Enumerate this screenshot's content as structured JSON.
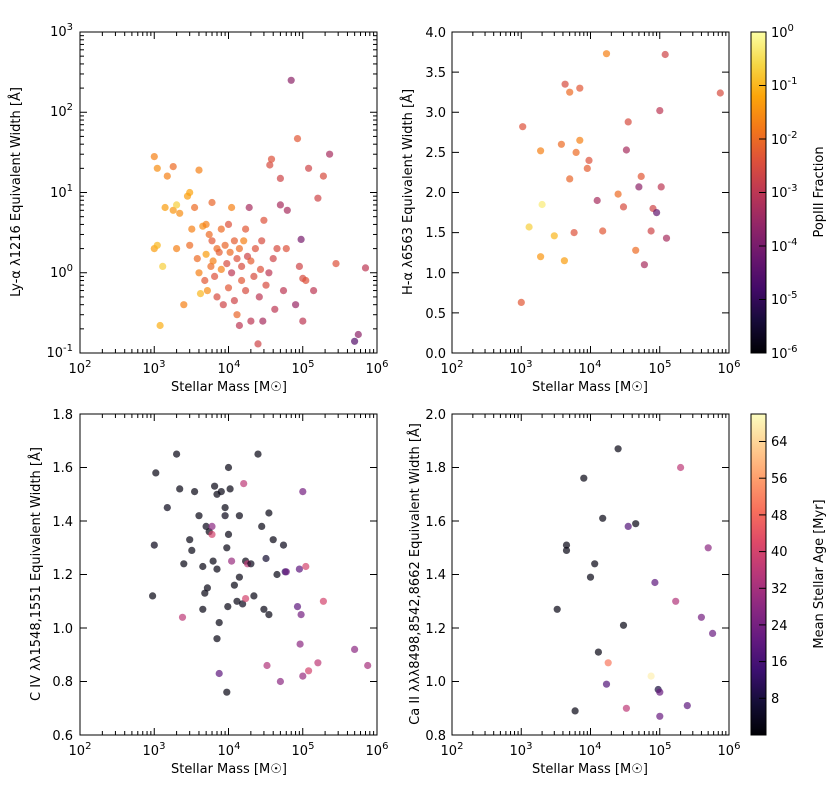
{
  "figure": {
    "colorbars": [
      {
        "label": "PopIII Fraction",
        "scale": "log",
        "range": [
          1e-06,
          1
        ],
        "tick_labels": [
          "10-6",
          "10-5",
          "10-4",
          "10-3",
          "10-2",
          "10-1",
          "100"
        ]
      },
      {
        "label": "Mean Stellar Age [Myr]",
        "scale": "linear",
        "range": [
          0,
          70
        ],
        "tick_labels": [
          "8",
          "16",
          "24",
          "32",
          "40",
          "48",
          "56",
          "64"
        ]
      }
    ]
  },
  "chart_data": [
    {
      "type": "scatter",
      "xlabel": "Stellar Mass [M☉]",
      "ylabel": "Ly-α λ1216 Equivalent Width [Å]",
      "xscale": "log",
      "yscale": "log",
      "xlim": [
        100,
        1000000
      ],
      "ylim": [
        0.1,
        1000
      ],
      "xtick_labels": [
        "10^2",
        "10^3",
        "10^4",
        "10^5",
        "10^6"
      ],
      "ytick_labels": [
        "10^-1",
        "10^0",
        "10^1",
        "10^2",
        "10^3"
      ],
      "color_by": "PopIII Fraction",
      "points": [
        [
          1000,
          28,
          0.02
        ],
        [
          1100,
          20,
          0.03
        ],
        [
          1000,
          2.0,
          0.05
        ],
        [
          1100,
          2.2,
          0.1
        ],
        [
          1200,
          0.22,
          0.08
        ],
        [
          1300,
          1.2,
          0.2
        ],
        [
          1400,
          6.5,
          0.05
        ],
        [
          1500,
          16,
          0.02
        ],
        [
          1800,
          21,
          0.01
        ],
        [
          1800,
          6.0,
          0.04
        ],
        [
          2000,
          2.0,
          0.02
        ],
        [
          2000,
          7.0,
          0.2
        ],
        [
          2200,
          5.5,
          0.03
        ],
        [
          2500,
          0.4,
          0.02
        ],
        [
          2800,
          9,
          0.05
        ],
        [
          3000,
          2.2,
          0.01
        ],
        [
          3000,
          10,
          0.06
        ],
        [
          3200,
          3.5,
          0.02
        ],
        [
          3500,
          6.5,
          0.01
        ],
        [
          3800,
          1.5,
          0.01
        ],
        [
          4000,
          19,
          0.02
        ],
        [
          4000,
          1.0,
          0.02
        ],
        [
          4200,
          0.55,
          0.1
        ],
        [
          4500,
          3.8,
          0.03
        ],
        [
          4800,
          0.8,
          0.005
        ],
        [
          5000,
          1.7,
          0.05
        ],
        [
          5000,
          4.0,
          0.02
        ],
        [
          5200,
          0.6,
          0.03
        ],
        [
          5500,
          3.0,
          0.01
        ],
        [
          5800,
          1.2,
          0.01
        ],
        [
          6000,
          7.5,
          0.008
        ],
        [
          6000,
          2.5,
          0.005
        ],
        [
          6200,
          1.4,
          0.02
        ],
        [
          6500,
          0.9,
          0.004
        ],
        [
          7000,
          2.0,
          0.01
        ],
        [
          7000,
          0.5,
          0.003
        ],
        [
          7500,
          1.8,
          0.006
        ],
        [
          8000,
          3.5,
          0.01
        ],
        [
          8000,
          1.1,
          0.02
        ],
        [
          8500,
          0.4,
          0.002
        ],
        [
          9000,
          2.2,
          0.008
        ],
        [
          9500,
          1.3,
          0.003
        ],
        [
          10000,
          4.0,
          0.004
        ],
        [
          10000,
          0.65,
          0.005
        ],
        [
          10500,
          1.8,
          0.01
        ],
        [
          11000,
          6.5,
          0.02
        ],
        [
          11000,
          1.0,
          0.001
        ],
        [
          12000,
          2.5,
          0.006
        ],
        [
          12000,
          0.45,
          0.002
        ],
        [
          13000,
          1.5,
          0.004
        ],
        [
          13000,
          0.3,
          0.008
        ],
        [
          14000,
          2.0,
          0.01
        ],
        [
          14000,
          0.22,
          0.001
        ],
        [
          15000,
          1.2,
          0.003
        ],
        [
          15000,
          0.8,
          0.005
        ],
        [
          16000,
          2.5,
          0.02
        ],
        [
          17000,
          3.5,
          0.005
        ],
        [
          17000,
          0.6,
          0.003
        ],
        [
          18000,
          1.6,
          0.002
        ],
        [
          19000,
          6.5,
          0.0005
        ],
        [
          20000,
          0.25,
          0.001
        ],
        [
          20000,
          1.4,
          0.006
        ],
        [
          22000,
          0.9,
          0.003
        ],
        [
          23000,
          2.0,
          0.004
        ],
        [
          25000,
          0.13,
          0.002
        ],
        [
          26000,
          0.5,
          0.001
        ],
        [
          27000,
          1.1,
          0.004
        ],
        [
          28000,
          2.5,
          0.003
        ],
        [
          29000,
          0.25,
          0.0005
        ],
        [
          30000,
          4.5,
          0.004
        ],
        [
          32000,
          0.7,
          0.003
        ],
        [
          35000,
          1.0,
          0.001
        ],
        [
          36000,
          22,
          0.003
        ],
        [
          38000,
          26,
          0.004
        ],
        [
          40000,
          1.5,
          0.002
        ],
        [
          42000,
          0.35,
          0.001
        ],
        [
          45000,
          2.0,
          0.003
        ],
        [
          50000,
          7.0,
          0.0005
        ],
        [
          50000,
          15,
          0.002
        ],
        [
          55000,
          0.6,
          0.001
        ],
        [
          60000,
          2.0,
          0.004
        ],
        [
          62000,
          6.0,
          0.0005
        ],
        [
          70000,
          250,
          0.0002
        ],
        [
          80000,
          0.4,
          0.0003
        ],
        [
          85000,
          47,
          0.005
        ],
        [
          90000,
          1.2,
          0.002
        ],
        [
          95000,
          2.6,
          0.0001
        ],
        [
          100000,
          0.85,
          0.003
        ],
        [
          100000,
          0.25,
          0.001
        ],
        [
          110000,
          0.8,
          0.004
        ],
        [
          120000,
          20,
          0.002
        ],
        [
          140000,
          0.6,
          0.001
        ],
        [
          160000,
          8.5,
          0.002
        ],
        [
          190000,
          16,
          0.003
        ],
        [
          230000,
          30,
          0.0005
        ],
        [
          280000,
          1.3,
          0.004
        ],
        [
          500000,
          0.14,
          3e-05
        ],
        [
          560000,
          0.17,
          0.0002
        ],
        [
          700000,
          1.15,
          0.001
        ]
      ]
    },
    {
      "type": "scatter",
      "xlabel": "Stellar Mass [M☉]",
      "ylabel": "H-α λ6563 Equivalent Width [Å]",
      "xscale": "log",
      "yscale": "linear",
      "xlim": [
        100,
        1000000
      ],
      "ylim": [
        0.0,
        4.0
      ],
      "xtick_labels": [
        "10^2",
        "10^3",
        "10^4",
        "10^5",
        "10^6"
      ],
      "ytick_labels": [
        "0.0",
        "0.5",
        "1.0",
        "1.5",
        "2.0",
        "2.5",
        "3.0",
        "3.5",
        "4.0"
      ],
      "color_by": "PopIII Fraction",
      "points": [
        [
          1000,
          0.63,
          0.005
        ],
        [
          1050,
          2.82,
          0.004
        ],
        [
          1300,
          1.57,
          0.2
        ],
        [
          1900,
          1.2,
          0.04
        ],
        [
          1900,
          2.52,
          0.02
        ],
        [
          2000,
          1.85,
          0.5
        ],
        [
          3000,
          1.46,
          0.1
        ],
        [
          3800,
          2.6,
          0.01
        ],
        [
          4200,
          1.15,
          0.05
        ],
        [
          4300,
          3.35,
          0.003
        ],
        [
          5000,
          3.25,
          0.01
        ],
        [
          5000,
          2.17,
          0.008
        ],
        [
          5800,
          1.5,
          0.004
        ],
        [
          6200,
          2.5,
          0.01
        ],
        [
          7000,
          3.3,
          0.005
        ],
        [
          7000,
          2.65,
          0.02
        ],
        [
          9000,
          2.3,
          0.006
        ],
        [
          9500,
          2.4,
          0.004
        ],
        [
          12500,
          1.9,
          0.0005
        ],
        [
          15000,
          1.52,
          0.005
        ],
        [
          17000,
          3.73,
          0.02
        ],
        [
          25000,
          1.98,
          0.01
        ],
        [
          30000,
          1.82,
          0.003
        ],
        [
          33000,
          2.53,
          0.0005
        ],
        [
          35000,
          2.88,
          0.003
        ],
        [
          45000,
          1.28,
          0.01
        ],
        [
          50000,
          2.07,
          0.0002
        ],
        [
          54000,
          2.2,
          0.005
        ],
        [
          60000,
          1.1,
          0.0005
        ],
        [
          75000,
          1.52,
          0.002
        ],
        [
          80000,
          1.8,
          0.002
        ],
        [
          90000,
          1.75,
          5e-05
        ],
        [
          100000,
          3.02,
          0.001
        ],
        [
          105000,
          2.07,
          0.001
        ],
        [
          120000,
          3.72,
          0.002
        ],
        [
          125000,
          1.43,
          0.0005
        ],
        [
          750000,
          3.24,
          0.003
        ]
      ]
    },
    {
      "type": "scatter",
      "xlabel": "Stellar Mass [M☉]",
      "ylabel": "C IV λλ1548,1551 Equivalent Width [Å]",
      "xscale": "log",
      "yscale": "linear",
      "xlim": [
        100,
        1000000
      ],
      "ylim": [
        0.6,
        1.8
      ],
      "xtick_labels": [
        "10^2",
        "10^3",
        "10^4",
        "10^5",
        "10^6"
      ],
      "ytick_labels": [
        "0.6",
        "0.8",
        "1.0",
        "1.2",
        "1.4",
        "1.6",
        "1.8"
      ],
      "color_by": "Mean Stellar Age [Myr]",
      "points": [
        [
          950,
          1.12,
          2
        ],
        [
          1000,
          1.31,
          3
        ],
        [
          1050,
          1.58,
          2
        ],
        [
          1500,
          1.45,
          3
        ],
        [
          2000,
          1.65,
          2
        ],
        [
          2200,
          1.52,
          2
        ],
        [
          2500,
          1.24,
          2
        ],
        [
          2400,
          1.04,
          36
        ],
        [
          3000,
          1.33,
          2
        ],
        [
          3200,
          1.29,
          2
        ],
        [
          3500,
          1.51,
          2
        ],
        [
          4000,
          1.42,
          2
        ],
        [
          4500,
          1.23,
          2
        ],
        [
          4500,
          1.07,
          2
        ],
        [
          4800,
          1.13,
          2
        ],
        [
          5000,
          1.38,
          3
        ],
        [
          5200,
          1.15,
          2
        ],
        [
          5500,
          1.36,
          2
        ],
        [
          6000,
          1.38,
          28
        ],
        [
          6000,
          1.35,
          40
        ],
        [
          6200,
          1.25,
          2
        ],
        [
          6500,
          1.53,
          2
        ],
        [
          7000,
          1.5,
          2
        ],
        [
          7000,
          1.22,
          2
        ],
        [
          7000,
          0.96,
          2
        ],
        [
          7500,
          1.02,
          2
        ],
        [
          7500,
          0.83,
          20
        ],
        [
          8000,
          1.51,
          2
        ],
        [
          9000,
          1.45,
          2
        ],
        [
          9000,
          1.42,
          3
        ],
        [
          9500,
          1.3,
          2
        ],
        [
          9800,
          1.08,
          2
        ],
        [
          10000,
          1.6,
          2
        ],
        [
          10000,
          1.35,
          2
        ],
        [
          9500,
          0.76,
          2
        ],
        [
          10500,
          1.52,
          2
        ],
        [
          11000,
          1.25,
          30
        ],
        [
          12000,
          1.16,
          2
        ],
        [
          13000,
          1.1,
          2
        ],
        [
          14000,
          1.42,
          2
        ],
        [
          14000,
          1.19,
          2
        ],
        [
          15500,
          1.09,
          3
        ],
        [
          16000,
          1.54,
          36
        ],
        [
          17000,
          1.25,
          2
        ],
        [
          17000,
          1.11,
          40
        ],
        [
          18000,
          1.24,
          36
        ],
        [
          20000,
          1.24,
          3
        ],
        [
          22000,
          1.12,
          2
        ],
        [
          25000,
          1.65,
          2
        ],
        [
          28000,
          1.38,
          2
        ],
        [
          30000,
          1.07,
          2
        ],
        [
          32000,
          1.26,
          6
        ],
        [
          33000,
          0.86,
          34
        ],
        [
          35000,
          1.43,
          2
        ],
        [
          35000,
          1.05,
          2
        ],
        [
          40000,
          1.33,
          2
        ],
        [
          45000,
          1.2,
          2
        ],
        [
          50000,
          0.8,
          28
        ],
        [
          55000,
          1.31,
          3
        ],
        [
          58000,
          1.21,
          12
        ],
        [
          60000,
          1.21,
          22
        ],
        [
          85000,
          1.08,
          20
        ],
        [
          90000,
          1.22,
          20
        ],
        [
          92000,
          0.94,
          28
        ],
        [
          95000,
          1.05,
          24
        ],
        [
          100000,
          1.51,
          24
        ],
        [
          100000,
          0.82,
          30
        ],
        [
          110000,
          1.23,
          40
        ],
        [
          120000,
          0.84,
          40
        ],
        [
          160000,
          0.87,
          36
        ],
        [
          190000,
          1.1,
          40
        ],
        [
          500000,
          0.92,
          28
        ],
        [
          750000,
          0.86,
          32
        ]
      ]
    },
    {
      "type": "scatter",
      "xlabel": "Stellar Mass [M☉]",
      "ylabel": "Ca II λλλ8498,8542,8662 Equivalent Width [Å]",
      "xscale": "log",
      "yscale": "linear",
      "xlim": [
        100,
        1000000
      ],
      "ylim": [
        0.8,
        2.0
      ],
      "xtick_labels": [
        "10^2",
        "10^3",
        "10^4",
        "10^5",
        "10^6"
      ],
      "ytick_labels": [
        "0.8",
        "1.0",
        "1.2",
        "1.4",
        "1.6",
        "1.8",
        "2.0"
      ],
      "color_by": "Mean Stellar Age [Myr]",
      "points": [
        [
          3300,
          1.27,
          2
        ],
        [
          4500,
          1.51,
          2
        ],
        [
          4500,
          1.49,
          2
        ],
        [
          6000,
          0.89,
          2
        ],
        [
          8000,
          1.76,
          2
        ],
        [
          10000,
          1.39,
          2
        ],
        [
          11500,
          1.44,
          2
        ],
        [
          13000,
          1.11,
          2
        ],
        [
          15000,
          1.61,
          2
        ],
        [
          17000,
          0.99,
          18
        ],
        [
          18000,
          1.07,
          50
        ],
        [
          25000,
          1.87,
          2
        ],
        [
          30000,
          1.21,
          2
        ],
        [
          33000,
          0.9,
          36
        ],
        [
          35000,
          1.58,
          18
        ],
        [
          45000,
          1.59,
          2
        ],
        [
          75000,
          1.02,
          68
        ],
        [
          85000,
          1.37,
          20
        ],
        [
          95000,
          0.97,
          8
        ],
        [
          100000,
          0.96,
          22
        ],
        [
          100000,
          0.87,
          22
        ],
        [
          170000,
          1.3,
          34
        ],
        [
          200000,
          1.8,
          36
        ],
        [
          250000,
          0.91,
          20
        ],
        [
          400000,
          1.24,
          24
        ],
        [
          500000,
          1.5,
          28
        ],
        [
          580000,
          1.18,
          22
        ]
      ]
    }
  ]
}
